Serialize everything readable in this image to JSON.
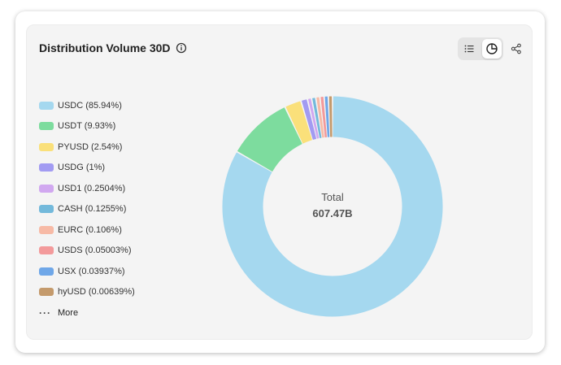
{
  "header": {
    "title": "Distribution Volume 30D"
  },
  "legend": {
    "items": [
      {
        "label": "USDC (85.94%)",
        "color": "#a5d8ef"
      },
      {
        "label": "USDT (9.93%)",
        "color": "#7ddc9e"
      },
      {
        "label": "PYUSD (2.54%)",
        "color": "#fae07a"
      },
      {
        "label": "USDG (1%)",
        "color": "#a29bf2"
      },
      {
        "label": "USD1 (0.2504%)",
        "color": "#d1a8f0"
      },
      {
        "label": "CASH (0.1255%)",
        "color": "#73b9db"
      },
      {
        "label": "EURC (0.106%)",
        "color": "#f7baa6"
      },
      {
        "label": "USDS (0.05003%)",
        "color": "#f39a9b"
      },
      {
        "label": "USX (0.03937%)",
        "color": "#6fa7e8"
      },
      {
        "label": "hyUSD (0.00639%)",
        "color": "#c49a6c"
      }
    ],
    "more_label": "More"
  },
  "center": {
    "label": "Total",
    "value": "607.47B"
  },
  "chart_data": {
    "type": "pie",
    "donut": true,
    "total": "607.47B",
    "slices": [
      {
        "name": "USDC",
        "value": 85.94,
        "color": "#a5d8ef"
      },
      {
        "name": "USDT",
        "value": 9.93,
        "color": "#7ddc9e"
      },
      {
        "name": "PYUSD",
        "value": 2.54,
        "color": "#fae07a"
      },
      {
        "name": "USDG",
        "value": 1,
        "color": "#a29bf2"
      },
      {
        "name": "USD1",
        "value": 0.2504,
        "color": "#d1a8f0"
      },
      {
        "name": "CASH",
        "value": 0.1255,
        "color": "#73b9db"
      },
      {
        "name": "EURC",
        "value": 0.106,
        "color": "#f7baa6"
      },
      {
        "name": "USDS",
        "value": 0.05003,
        "color": "#f39a9b"
      },
      {
        "name": "USX",
        "value": 0.03937,
        "color": "#6fa7e8"
      },
      {
        "name": "hyUSD",
        "value": 0.00639,
        "color": "#c49a6c"
      }
    ]
  }
}
